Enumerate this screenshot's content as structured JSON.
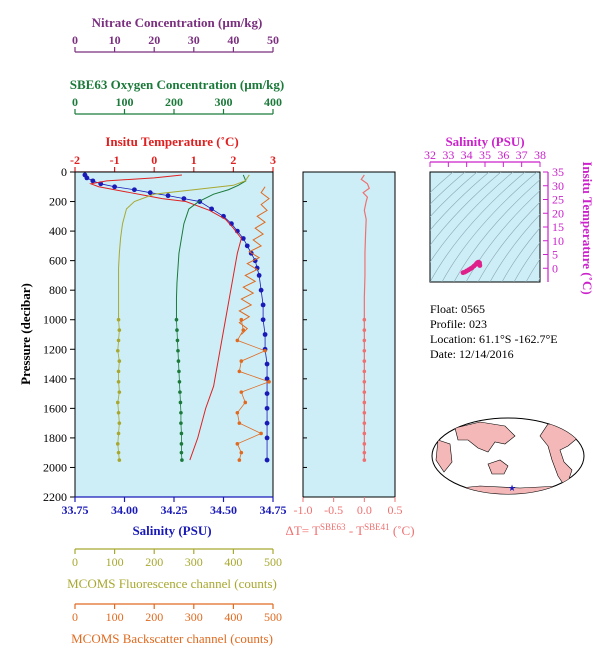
{
  "colors": {
    "panel_bg": "#cdeef7",
    "nitrate": "#7a2f7f",
    "oxygen": "#1b7a3a",
    "temperature": "#e02020",
    "salinity": "#1a1ab8",
    "fluorescence": "#a8a830",
    "backscatter": "#e06a20",
    "delta_t": "#f07070",
    "ts_axis": "#cc22cc",
    "land": "#f4b8b8"
  },
  "info": {
    "float_line": "Float:  0565",
    "profile_line": "Profile:  023",
    "location_line": "Location:  61.1°S  -162.7°E",
    "date_line": "Date:  12/14/2016"
  },
  "chart_data": [
    {
      "type": "line",
      "id": "main-profile",
      "ylabel": "Pressure (decibar)",
      "ylim": [
        2200,
        0
      ],
      "yticks": [
        "0",
        "200",
        "400",
        "600",
        "800",
        "1000",
        "1200",
        "1400",
        "1600",
        "1800",
        "2000",
        "2200"
      ],
      "grid": false,
      "axes": {
        "salinity": {
          "label": "Salinity (PSU)",
          "lim": [
            33.75,
            34.75
          ],
          "ticks": [
            "33.75",
            "34.00",
            "34.25",
            "34.50",
            "34.75"
          ]
        },
        "temperature": {
          "label": "Insitu Temperature (˚C)",
          "lim": [
            -2,
            3
          ],
          "ticks": [
            "-2",
            "-1",
            "0",
            "1",
            "2",
            "3"
          ]
        },
        "oxygen": {
          "label": "SBE63 Oxygen Concentration (µm/kg)",
          "lim": [
            0,
            400
          ],
          "ticks": [
            "0",
            "100",
            "200",
            "300",
            "400"
          ]
        },
        "nitrate": {
          "label": "Nitrate Concentration (µm/kg)",
          "lim": [
            0,
            50
          ],
          "ticks": [
            "0",
            "10",
            "20",
            "30",
            "40",
            "50"
          ]
        },
        "fluorescence": {
          "label": "MCOMS Fluorescence channel (counts)",
          "lim": [
            0,
            500
          ],
          "ticks": [
            "0",
            "100",
            "200",
            "300",
            "400",
            "500"
          ]
        },
        "backscatter": {
          "label": "MCOMS Backscatter channel (counts)",
          "lim": [
            0,
            500
          ],
          "ticks": [
            "0",
            "100",
            "200",
            "300",
            "400",
            "500"
          ]
        }
      },
      "series": [
        {
          "axis": "salinity",
          "color": "#1a1ab8",
          "markers": true,
          "x": [
            33.8,
            33.81,
            33.84,
            33.88,
            33.95,
            34.05,
            34.13,
            34.22,
            34.3,
            34.38,
            34.44,
            34.5,
            34.54,
            34.57,
            34.6,
            34.62,
            34.64,
            34.66,
            34.67,
            34.68,
            34.69,
            34.7,
            34.7,
            34.71,
            34.71,
            34.72,
            34.72,
            34.72,
            34.72,
            34.72,
            34.72,
            34.72
          ],
          "y": [
            20,
            40,
            60,
            80,
            100,
            120,
            140,
            160,
            180,
            200,
            250,
            300,
            350,
            400,
            450,
            500,
            550,
            600,
            650,
            700,
            800,
            900,
            1000,
            1100,
            1200,
            1300,
            1400,
            1500,
            1600,
            1700,
            1800,
            1950
          ]
        },
        {
          "axis": "temperature",
          "color": "#e02020",
          "markers": false,
          "x": [
            0.7,
            0.0,
            -1.2,
            -1.6,
            -1.4,
            -1.0,
            -0.6,
            -0.2,
            0.2,
            0.8,
            1.4,
            1.8,
            2.0,
            2.2,
            2.1,
            2.0,
            1.9,
            1.8,
            1.7,
            1.6,
            1.5,
            1.3,
            1.1,
            0.9
          ],
          "y": [
            20,
            40,
            60,
            80,
            100,
            120,
            140,
            160,
            180,
            200,
            260,
            320,
            380,
            450,
            550,
            700,
            850,
            1000,
            1150,
            1300,
            1450,
            1600,
            1800,
            1950
          ]
        },
        {
          "axis": "oxygen",
          "color": "#1b7a3a",
          "markers": false,
          "x": [
            340,
            345,
            330,
            310,
            280,
            250,
            230,
            220,
            215,
            210,
            208,
            206,
            205,
            205
          ],
          "y": [
            20,
            60,
            90,
            120,
            150,
            200,
            250,
            350,
            450,
            550,
            650,
            750,
            850,
            1000
          ]
        },
        {
          "axis": "oxygen",
          "color": "#1b7a3a",
          "markers": true,
          "x": [
            205,
            206,
            207,
            208,
            209,
            210,
            211,
            212,
            213,
            214,
            214,
            215,
            215,
            215,
            216
          ],
          "y": [
            1000,
            1070,
            1140,
            1210,
            1280,
            1350,
            1420,
            1490,
            1560,
            1630,
            1700,
            1770,
            1840,
            1900,
            1950
          ]
        },
        {
          "axis": "fluorescence",
          "color": "#a8a830",
          "markers": false,
          "x": [
            440,
            430,
            400,
            300,
            200,
            150,
            130,
            120,
            115,
            112,
            110,
            110,
            110,
            110
          ],
          "y": [
            20,
            60,
            90,
            120,
            150,
            200,
            250,
            350,
            450,
            550,
            650,
            750,
            850,
            1000
          ]
        },
        {
          "axis": "fluorescence",
          "color": "#a8a830",
          "markers": true,
          "x": [
            110,
            112,
            110,
            108,
            112,
            110,
            110,
            112,
            108,
            110,
            112,
            110,
            108,
            110,
            112
          ],
          "y": [
            1000,
            1070,
            1140,
            1210,
            1280,
            1350,
            1420,
            1490,
            1560,
            1630,
            1700,
            1770,
            1840,
            1900,
            1950
          ]
        },
        {
          "axis": "backscatter",
          "color": "#e06a20",
          "markers": false,
          "x": [
            480,
            470,
            490,
            470,
            485,
            460,
            480,
            455,
            475,
            450,
            470,
            440,
            465,
            435,
            460,
            430,
            455,
            425,
            450,
            420,
            445,
            415,
            440,
            415,
            435,
            420
          ],
          "y": [
            100,
            140,
            180,
            220,
            260,
            300,
            340,
            380,
            420,
            460,
            500,
            540,
            580,
            620,
            660,
            700,
            740,
            780,
            820,
            860,
            900,
            940,
            980,
            1020,
            1060,
            1100
          ]
        },
        {
          "axis": "backscatter",
          "color": "#e06a20",
          "markers": true,
          "x": [
            420,
            425,
            410,
            480,
            420,
            415,
            490,
            420,
            430,
            410,
            415,
            470,
            410,
            420,
            415
          ],
          "y": [
            1000,
            1070,
            1140,
            1210,
            1280,
            1350,
            1420,
            1490,
            1560,
            1630,
            1700,
            1770,
            1840,
            1900,
            1950
          ]
        }
      ]
    },
    {
      "type": "line",
      "id": "delta-t",
      "xlabel": "ΔT= T",
      "xlabel_sup1": "SBE63",
      "xlabel_mid": " - T",
      "xlabel_sup2": "SBE41",
      "xlabel_tail": " (˚C)",
      "xlim": [
        -1.0,
        0.5
      ],
      "xticks": [
        "-1.0",
        "-0.5",
        "0.0",
        "0.5"
      ],
      "ylim": [
        2200,
        0
      ],
      "series": [
        {
          "color": "#f07070",
          "markers": false,
          "x": [
            0.0,
            -0.05,
            0.05,
            0.08,
            -0.02,
            0.05,
            0.03,
            0.0,
            0.03,
            0.02,
            0.01,
            0.01,
            0.0,
            0.0
          ],
          "y": [
            20,
            50,
            80,
            110,
            140,
            170,
            200,
            260,
            320,
            420,
            550,
            700,
            850,
            1000
          ]
        },
        {
          "color": "#f07070",
          "markers": true,
          "x": [
            0.0,
            0.0,
            0.0,
            0.0,
            0.0,
            0.0,
            0.0,
            0.0,
            0.0,
            0.0,
            0.0,
            0.0,
            0.0,
            0.0,
            0.0
          ],
          "y": [
            1000,
            1070,
            1140,
            1210,
            1280,
            1350,
            1420,
            1490,
            1560,
            1630,
            1700,
            1770,
            1840,
            1900,
            1950
          ]
        }
      ]
    },
    {
      "type": "scatter",
      "id": "ts-diagram",
      "xlabel": "Salinity (PSU)",
      "ylabel": "Insitu Temperature (˚C)",
      "xlim": [
        32,
        38
      ],
      "ylim": [
        -5,
        35
      ],
      "xticks": [
        "32",
        "33",
        "34",
        "35",
        "36",
        "37",
        "38"
      ],
      "yticks": [
        "0",
        "5",
        "10",
        "15",
        "20",
        "25",
        "30",
        "35"
      ],
      "series": [
        {
          "color": "#e0208a",
          "x": [
            33.8,
            33.9,
            34.0,
            34.1,
            34.2,
            34.3,
            34.4,
            34.5,
            34.55,
            34.6,
            34.65,
            34.7,
            34.7,
            34.72
          ],
          "y": [
            -1.6,
            -1.4,
            -1.0,
            -0.6,
            -0.2,
            0.2,
            0.8,
            1.4,
            1.8,
            2.1,
            2.2,
            2.0,
            1.5,
            1.0
          ]
        }
      ]
    }
  ]
}
